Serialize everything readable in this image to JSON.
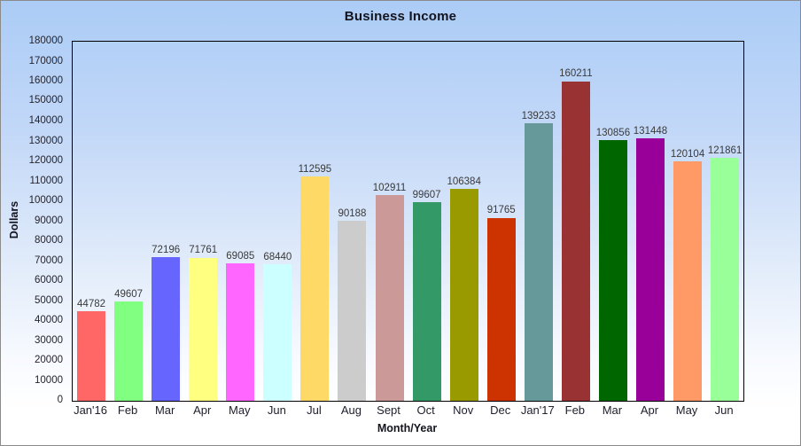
{
  "colors": {
    "background_top": "#abccf6",
    "background_bottom": "#ffffff",
    "frame_border": "#8b8b8b",
    "plot_border": "#000000",
    "tick_text": "#23232e",
    "value_text": "#3a3a3a",
    "title_text": "#14141e"
  },
  "chart_data": {
    "type": "bar",
    "title": "Business Income",
    "xlabel": "Month/Year",
    "ylabel": "Dollars",
    "ylim": [
      0,
      180000
    ],
    "ytick_step": 10000,
    "grid": false,
    "legend": "none",
    "categories": [
      "Jan'16",
      "Feb",
      "Mar",
      "Apr",
      "May",
      "Jun",
      "Jul",
      "Aug",
      "Sept",
      "Oct",
      "Nov",
      "Dec",
      "Jan'17",
      "Feb",
      "Mar",
      "Apr",
      "May",
      "Jun"
    ],
    "values": [
      44782,
      49607,
      72196,
      71761,
      69085,
      68440,
      112595,
      90188,
      102911,
      99607,
      106384,
      91765,
      139233,
      160211,
      130856,
      131448,
      120104,
      121861
    ],
    "bar_colors": [
      "#FF6666",
      "#80FF80",
      "#6666FF",
      "#FFFF80",
      "#FF66FF",
      "#CCFFFF",
      "#FFD966",
      "#CCCCCC",
      "#CC9999",
      "#339966",
      "#999900",
      "#CC3300",
      "#669999",
      "#993333",
      "#006600",
      "#990099",
      "#FF9966",
      "#99FF99"
    ],
    "y_ticks": [
      0,
      10000,
      20000,
      30000,
      40000,
      50000,
      60000,
      70000,
      80000,
      90000,
      100000,
      110000,
      120000,
      130000,
      140000,
      150000,
      160000,
      170000,
      180000
    ]
  }
}
